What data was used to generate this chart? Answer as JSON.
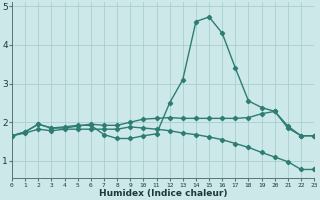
{
  "xlabel": "Humidex (Indice chaleur)",
  "x": [
    0,
    1,
    2,
    3,
    4,
    5,
    6,
    7,
    8,
    9,
    10,
    11,
    12,
    13,
    14,
    15,
    16,
    17,
    18,
    19,
    20,
    21,
    22,
    23
  ],
  "line1": [
    1.65,
    1.75,
    1.95,
    1.85,
    1.85,
    1.9,
    1.95,
    1.92,
    1.92,
    2.0,
    2.08,
    2.1,
    2.12,
    2.1,
    2.1,
    2.1,
    2.1,
    2.1,
    2.12,
    2.22,
    2.28,
    1.9,
    1.65,
    1.65
  ],
  "line2": [
    1.65,
    1.75,
    1.95,
    1.85,
    1.88,
    1.92,
    1.92,
    1.68,
    1.58,
    1.58,
    1.65,
    1.7,
    2.5,
    3.1,
    4.6,
    4.72,
    4.3,
    3.4,
    2.55,
    2.38,
    2.28,
    1.85,
    1.65,
    1.65
  ],
  "line3": [
    1.65,
    1.72,
    1.82,
    1.78,
    1.82,
    1.82,
    1.82,
    1.82,
    1.82,
    1.88,
    1.85,
    1.82,
    1.78,
    1.72,
    1.68,
    1.62,
    1.55,
    1.45,
    1.35,
    1.22,
    1.1,
    0.98,
    0.78,
    0.78
  ],
  "color": "#2e7d74",
  "bg_color": "#cce8e8",
  "grid_color": "#aacece",
  "xlim": [
    0,
    23
  ],
  "ylim": [
    0.55,
    5.1
  ],
  "yticks": [
    1,
    2,
    3,
    4,
    5
  ],
  "xticks": [
    0,
    1,
    2,
    3,
    4,
    5,
    6,
    7,
    8,
    9,
    10,
    11,
    12,
    13,
    14,
    15,
    16,
    17,
    18,
    19,
    20,
    21,
    22,
    23
  ],
  "marker": "D",
  "markersize": 2.2,
  "linewidth": 1.0
}
